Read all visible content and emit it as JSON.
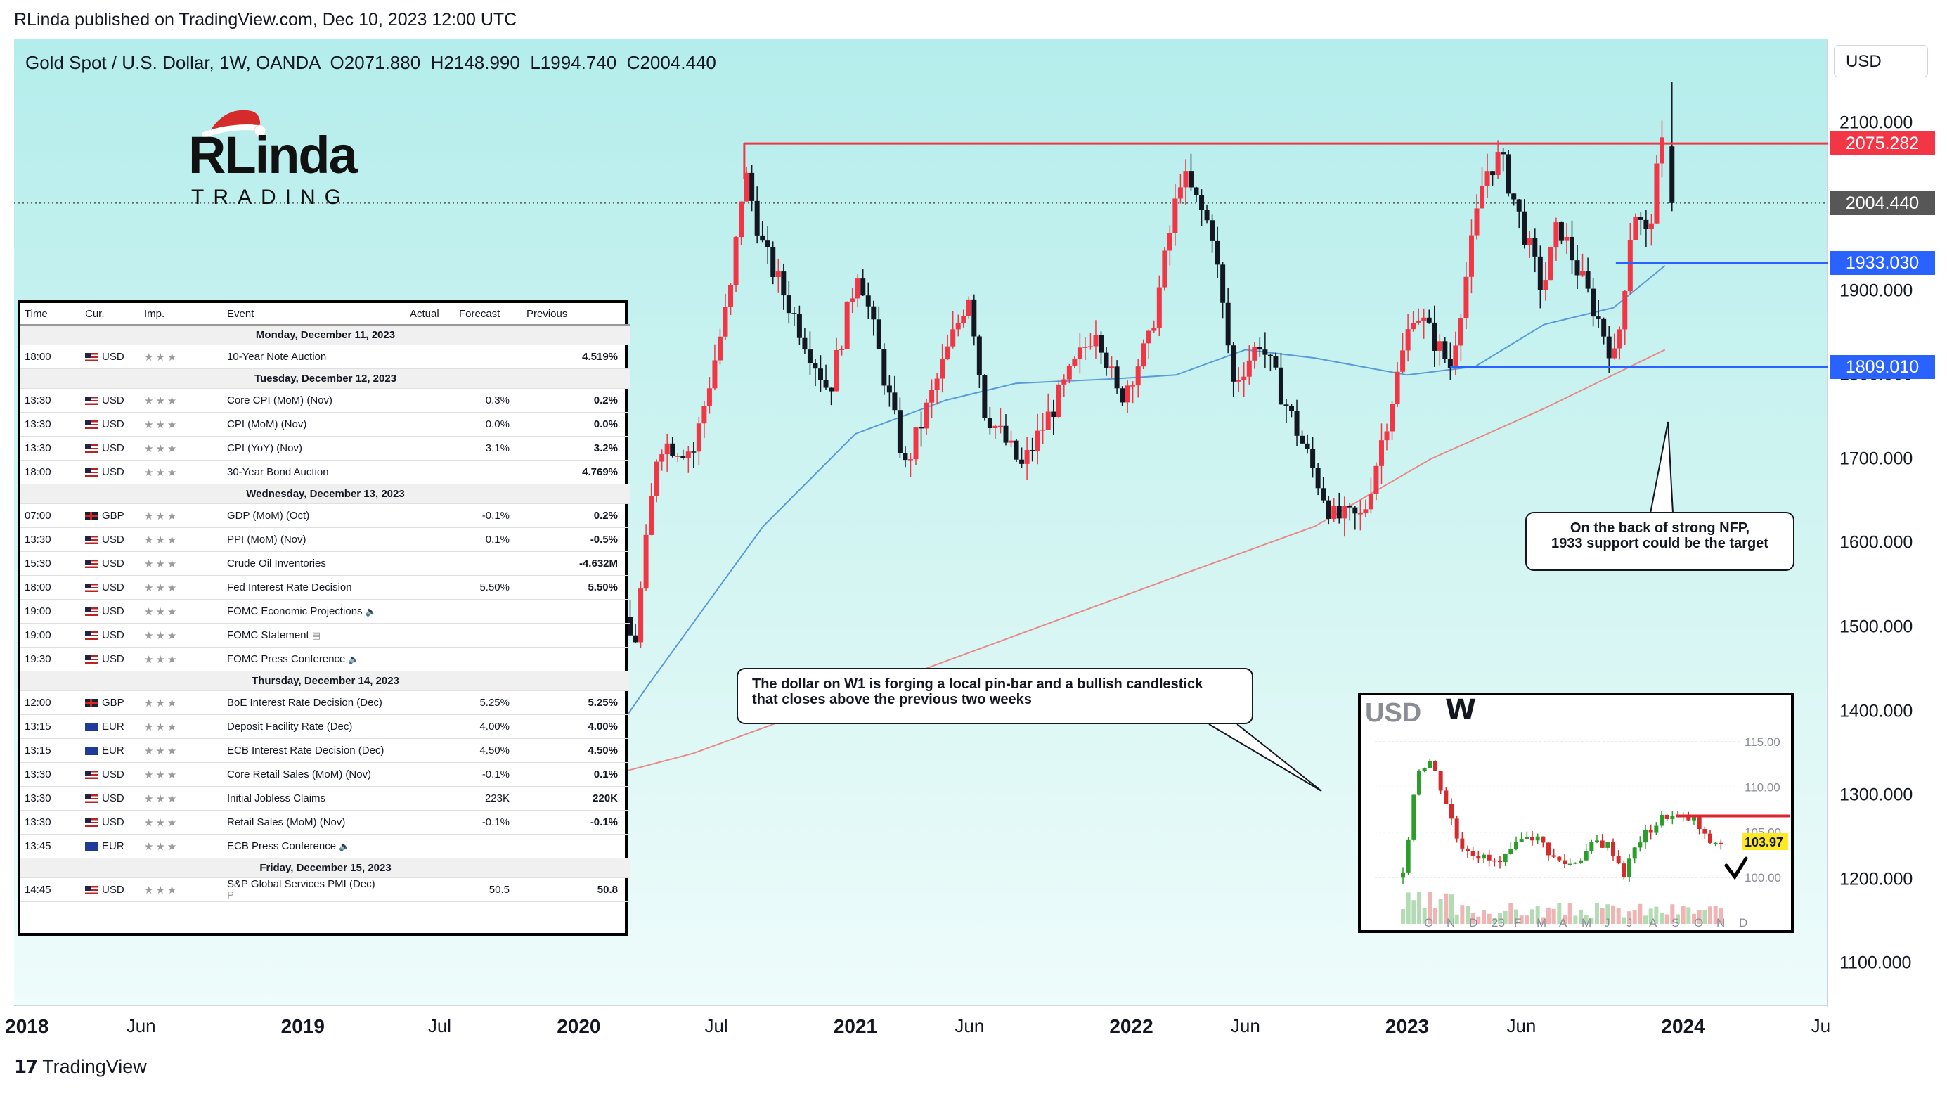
{
  "header": {
    "text": "RLinda published on TradingView.com, Dec 10, 2023 12:00 UTC"
  },
  "legend": {
    "symbol": "Gold Spot / U.S. Dollar, 1W, OANDA",
    "open": "O2071.880",
    "high": "H2148.990",
    "low": "L1994.740",
    "close": "C2004.440"
  },
  "currency_selector": "USD",
  "footer": {
    "brand": "TradingView",
    "logo": "tradingview-logo-icon"
  },
  "logo": {
    "top": "RLinda",
    "bottom": "TRADING",
    "icon": "santa-hat-icon"
  },
  "colors": {
    "up": "#f23645",
    "down": "#131722",
    "ma_fast": "#5b9bd5",
    "ma_slow": "#e88a8a",
    "resistance": "#f23645",
    "support": "#2962ff",
    "last_price_tag": "#575757",
    "accent_green": "#22ab94"
  },
  "price_tags": [
    {
      "label": "2075.282",
      "value": 2075.282,
      "color": "#f23645"
    },
    {
      "label": "2004.440",
      "value": 2004.44,
      "color": "#575757"
    },
    {
      "label": "1933.030",
      "value": 1933.03,
      "color": "#2962ff"
    },
    {
      "label": "1809.010",
      "value": 1809.01,
      "color": "#2962ff"
    }
  ],
  "callouts": {
    "gold": {
      "line1": "On the back of strong NFP,",
      "line2": "1933 support could be the target"
    },
    "usd": {
      "line1": "The dollar on W1 is forging a local pin-bar and a bullish candlestick",
      "line2": "that closes above the previous two weeks"
    }
  },
  "chart_data": [
    {
      "type": "candlestick",
      "title": "Gold Spot / U.S. Dollar, 1W, OANDA",
      "ylim": [
        1050,
        2200
      ],
      "y_ticks": [
        1100,
        1200,
        1300,
        1400,
        1500,
        1600,
        1700,
        1800,
        1900,
        2000,
        2100
      ],
      "y_tick_labels": [
        "1100.000",
        "1200.000",
        "1300.000",
        "1400.000",
        "1500.000",
        "1600.000",
        "1700.000",
        "1800.000",
        "1900.000",
        "2000.000",
        "2100.000"
      ],
      "x_range": [
        "2017-12-15",
        "2024-07-10"
      ],
      "x_ticks": [
        {
          "date": "2018-01-01",
          "label": "2018",
          "bold": true
        },
        {
          "date": "2018-06-01",
          "label": "Jun",
          "bold": false
        },
        {
          "date": "2019-01-01",
          "label": "2019",
          "bold": true
        },
        {
          "date": "2019-07-01",
          "label": "Jul",
          "bold": false
        },
        {
          "date": "2020-01-01",
          "label": "2020",
          "bold": true
        },
        {
          "date": "2020-07-01",
          "label": "Jul",
          "bold": false
        },
        {
          "date": "2021-01-01",
          "label": "2021",
          "bold": true
        },
        {
          "date": "2021-06-01",
          "label": "Jun",
          "bold": false
        },
        {
          "date": "2022-01-01",
          "label": "2022",
          "bold": true
        },
        {
          "date": "2022-06-01",
          "label": "Jun",
          "bold": false
        },
        {
          "date": "2023-01-01",
          "label": "2023",
          "bold": true
        },
        {
          "date": "2023-06-01",
          "label": "Jun",
          "bold": false
        },
        {
          "date": "2024-01-01",
          "label": "2024",
          "bold": true
        },
        {
          "date": "2024-07-01",
          "label": "Ju",
          "bold": false
        }
      ],
      "price_path": [
        [
          "2018-01-01",
          1320
        ],
        [
          "2018-04-01",
          1340
        ],
        [
          "2018-08-15",
          1180
        ],
        [
          "2018-12-31",
          1280
        ],
        [
          "2019-05-01",
          1280
        ],
        [
          "2019-06-25",
          1420
        ],
        [
          "2019-09-01",
          1530
        ],
        [
          "2019-12-01",
          1470
        ],
        [
          "2020-01-08",
          1570
        ],
        [
          "2020-03-15",
          1480
        ],
        [
          "2020-04-15",
          1720
        ],
        [
          "2020-06-01",
          1710
        ],
        [
          "2020-07-20",
          1900
        ],
        [
          "2020-08-07",
          2045
        ],
        [
          "2020-09-01",
          1950
        ],
        [
          "2020-11-27",
          1780
        ],
        [
          "2021-01-05",
          1930
        ],
        [
          "2021-03-08",
          1690
        ],
        [
          "2021-06-01",
          1900
        ],
        [
          "2021-06-20",
          1760
        ],
        [
          "2021-08-09",
          1690
        ],
        [
          "2021-11-16",
          1860
        ],
        [
          "2021-12-15",
          1770
        ],
        [
          "2022-01-25",
          1840
        ],
        [
          "2022-03-08",
          2040
        ],
        [
          "2022-04-18",
          1970
        ],
        [
          "2022-05-16",
          1790
        ],
        [
          "2022-06-20",
          1840
        ],
        [
          "2022-09-25",
          1630
        ],
        [
          "2022-11-03",
          1630
        ],
        [
          "2023-01-10",
          1880
        ],
        [
          "2023-02-27",
          1810
        ],
        [
          "2023-04-13",
          2040
        ],
        [
          "2023-05-04",
          2060
        ],
        [
          "2023-06-29",
          1900
        ],
        [
          "2023-07-20",
          1980
        ],
        [
          "2023-10-04",
          1815
        ],
        [
          "2023-10-27",
          2000
        ],
        [
          "2023-11-15",
          1960
        ],
        [
          "2023-11-29",
          2050
        ],
        [
          "2023-12-04",
          2072
        ],
        [
          "2023-12-08",
          2004
        ]
      ],
      "ma_fast": [
        [
          "2019-12-15",
          1290
        ],
        [
          "2020-04-01",
          1430
        ],
        [
          "2020-09-01",
          1620
        ],
        [
          "2021-01-01",
          1730
        ],
        [
          "2021-05-01",
          1770
        ],
        [
          "2021-08-01",
          1790
        ],
        [
          "2021-12-01",
          1795
        ],
        [
          "2022-03-01",
          1800
        ],
        [
          "2022-06-01",
          1830
        ],
        [
          "2022-09-01",
          1820
        ],
        [
          "2023-01-01",
          1800
        ],
        [
          "2023-04-01",
          1810
        ],
        [
          "2023-07-01",
          1860
        ],
        [
          "2023-10-01",
          1880
        ],
        [
          "2023-12-08",
          1930
        ]
      ],
      "ma_slow": [
        [
          "2019-12-15",
          1310
        ],
        [
          "2020-06-01",
          1350
        ],
        [
          "2021-01-01",
          1420
        ],
        [
          "2021-08-01",
          1490
        ],
        [
          "2022-03-01",
          1560
        ],
        [
          "2022-09-01",
          1620
        ],
        [
          "2023-02-01",
          1700
        ],
        [
          "2023-07-01",
          1760
        ],
        [
          "2023-12-08",
          1830
        ]
      ],
      "levels": [
        {
          "price": 2075.282,
          "from": "2020-08-07",
          "color": "#f23645"
        },
        {
          "price": 1933.03,
          "from": "2023-10-04",
          "color": "#2962ff"
        },
        {
          "price": 1809.01,
          "from": "2023-02-27",
          "color": "#2962ff"
        }
      ],
      "last_price": 2004.44
    },
    {
      "type": "candlestick",
      "title": "USD",
      "y_ticks": [
        100,
        105,
        110,
        115
      ],
      "y_tick_labels": [
        "100.00",
        "105.00",
        "110.00",
        "115.00"
      ],
      "ylim": [
        98,
        117
      ],
      "x_tick_labels": [
        "O",
        "N",
        "D",
        "23",
        "F",
        "M",
        "A",
        "M",
        "J",
        "J",
        "A",
        "S",
        "O",
        "N",
        "D"
      ],
      "price_path": [
        100,
        112,
        113,
        109,
        104,
        103,
        102,
        101.5,
        103,
        105,
        104,
        102,
        101.5,
        102.5,
        104,
        103.5,
        100.5,
        104,
        105.5,
        107,
        106.5,
        106.5,
        104,
        103.97
      ],
      "resistance": 106.8,
      "last_price": 103.97,
      "last_label": "103.97"
    }
  ],
  "calendar": {
    "headers": [
      "Time",
      "Cur.",
      "Imp.",
      "Event",
      "Actual",
      "Forecast",
      "Previous"
    ],
    "rows": [
      {
        "day": "Monday, December 11, 2023"
      },
      {
        "time": "18:00",
        "flag": "us",
        "cur": "USD",
        "event": "10-Year Note Auction",
        "actual": "",
        "forecast": "",
        "previous": "4.519%"
      },
      {
        "day": "Tuesday, December 12, 2023"
      },
      {
        "time": "13:30",
        "flag": "us",
        "cur": "USD",
        "event": "Core CPI (MoM) (Nov)",
        "actual": "",
        "forecast": "0.3%",
        "previous": "0.2%"
      },
      {
        "time": "13:30",
        "flag": "us",
        "cur": "USD",
        "event": "CPI (MoM) (Nov)",
        "actual": "",
        "forecast": "0.0%",
        "previous": "0.0%"
      },
      {
        "time": "13:30",
        "flag": "us",
        "cur": "USD",
        "event": "CPI (YoY) (Nov)",
        "actual": "",
        "forecast": "3.1%",
        "previous": "3.2%"
      },
      {
        "time": "18:00",
        "flag": "us",
        "cur": "USD",
        "event": "30-Year Bond Auction",
        "actual": "",
        "forecast": "",
        "previous": "4.769%"
      },
      {
        "day": "Wednesday, December 13, 2023"
      },
      {
        "time": "07:00",
        "flag": "gb",
        "cur": "GBP",
        "event": "GDP (MoM) (Oct)",
        "actual": "",
        "forecast": "-0.1%",
        "previous": "0.2%"
      },
      {
        "time": "13:30",
        "flag": "us",
        "cur": "USD",
        "event": "PPI (MoM) (Nov)",
        "actual": "",
        "forecast": "0.1%",
        "previous": "-0.5%"
      },
      {
        "time": "15:30",
        "flag": "us",
        "cur": "USD",
        "event": "Crude Oil Inventories",
        "actual": "",
        "forecast": "",
        "previous": "-4.632M"
      },
      {
        "time": "18:00",
        "flag": "us",
        "cur": "USD",
        "event": "Fed Interest Rate Decision",
        "actual": "",
        "forecast": "5.50%",
        "previous": "5.50%"
      },
      {
        "time": "19:00",
        "flag": "us",
        "cur": "USD",
        "event": "FOMC Economic Projections",
        "icon": "speaker-icon",
        "actual": "",
        "forecast": "",
        "previous": ""
      },
      {
        "time": "19:00",
        "flag": "us",
        "cur": "USD",
        "event": "FOMC Statement",
        "icon": "document-icon",
        "actual": "",
        "forecast": "",
        "previous": ""
      },
      {
        "time": "19:30",
        "flag": "us",
        "cur": "USD",
        "event": "FOMC Press Conference",
        "icon": "speaker-icon",
        "actual": "",
        "forecast": "",
        "previous": ""
      },
      {
        "day": "Thursday, December 14, 2023"
      },
      {
        "time": "12:00",
        "flag": "gb",
        "cur": "GBP",
        "event": "BoE Interest Rate Decision (Dec)",
        "actual": "",
        "forecast": "5.25%",
        "previous": "5.25%"
      },
      {
        "time": "13:15",
        "flag": "eu",
        "cur": "EUR",
        "event": "Deposit Facility Rate (Dec)",
        "actual": "",
        "forecast": "4.00%",
        "previous": "4.00%"
      },
      {
        "time": "13:15",
        "flag": "eu",
        "cur": "EUR",
        "event": "ECB Interest Rate Decision (Dec)",
        "actual": "",
        "forecast": "4.50%",
        "previous": "4.50%"
      },
      {
        "time": "13:30",
        "flag": "us",
        "cur": "USD",
        "event": "Core Retail Sales (MoM) (Nov)",
        "actual": "",
        "forecast": "-0.1%",
        "previous": "0.1%"
      },
      {
        "time": "13:30",
        "flag": "us",
        "cur": "USD",
        "event": "Initial Jobless Claims",
        "actual": "",
        "forecast": "223K",
        "previous": "220K"
      },
      {
        "time": "13:30",
        "flag": "us",
        "cur": "USD",
        "event": "Retail Sales (MoM) (Nov)",
        "actual": "",
        "forecast": "-0.1%",
        "previous": "-0.1%"
      },
      {
        "time": "13:45",
        "flag": "eu",
        "cur": "EUR",
        "event": "ECB Press Conference",
        "icon": "speaker-icon",
        "actual": "",
        "forecast": "",
        "previous": ""
      },
      {
        "day": "Friday, December 15, 2023"
      },
      {
        "time": "14:45",
        "flag": "us",
        "cur": "USD",
        "event": "S&P Global Services PMI (Dec)",
        "sub": "P",
        "actual": "",
        "forecast": "50.5",
        "previous": "50.8"
      }
    ]
  }
}
